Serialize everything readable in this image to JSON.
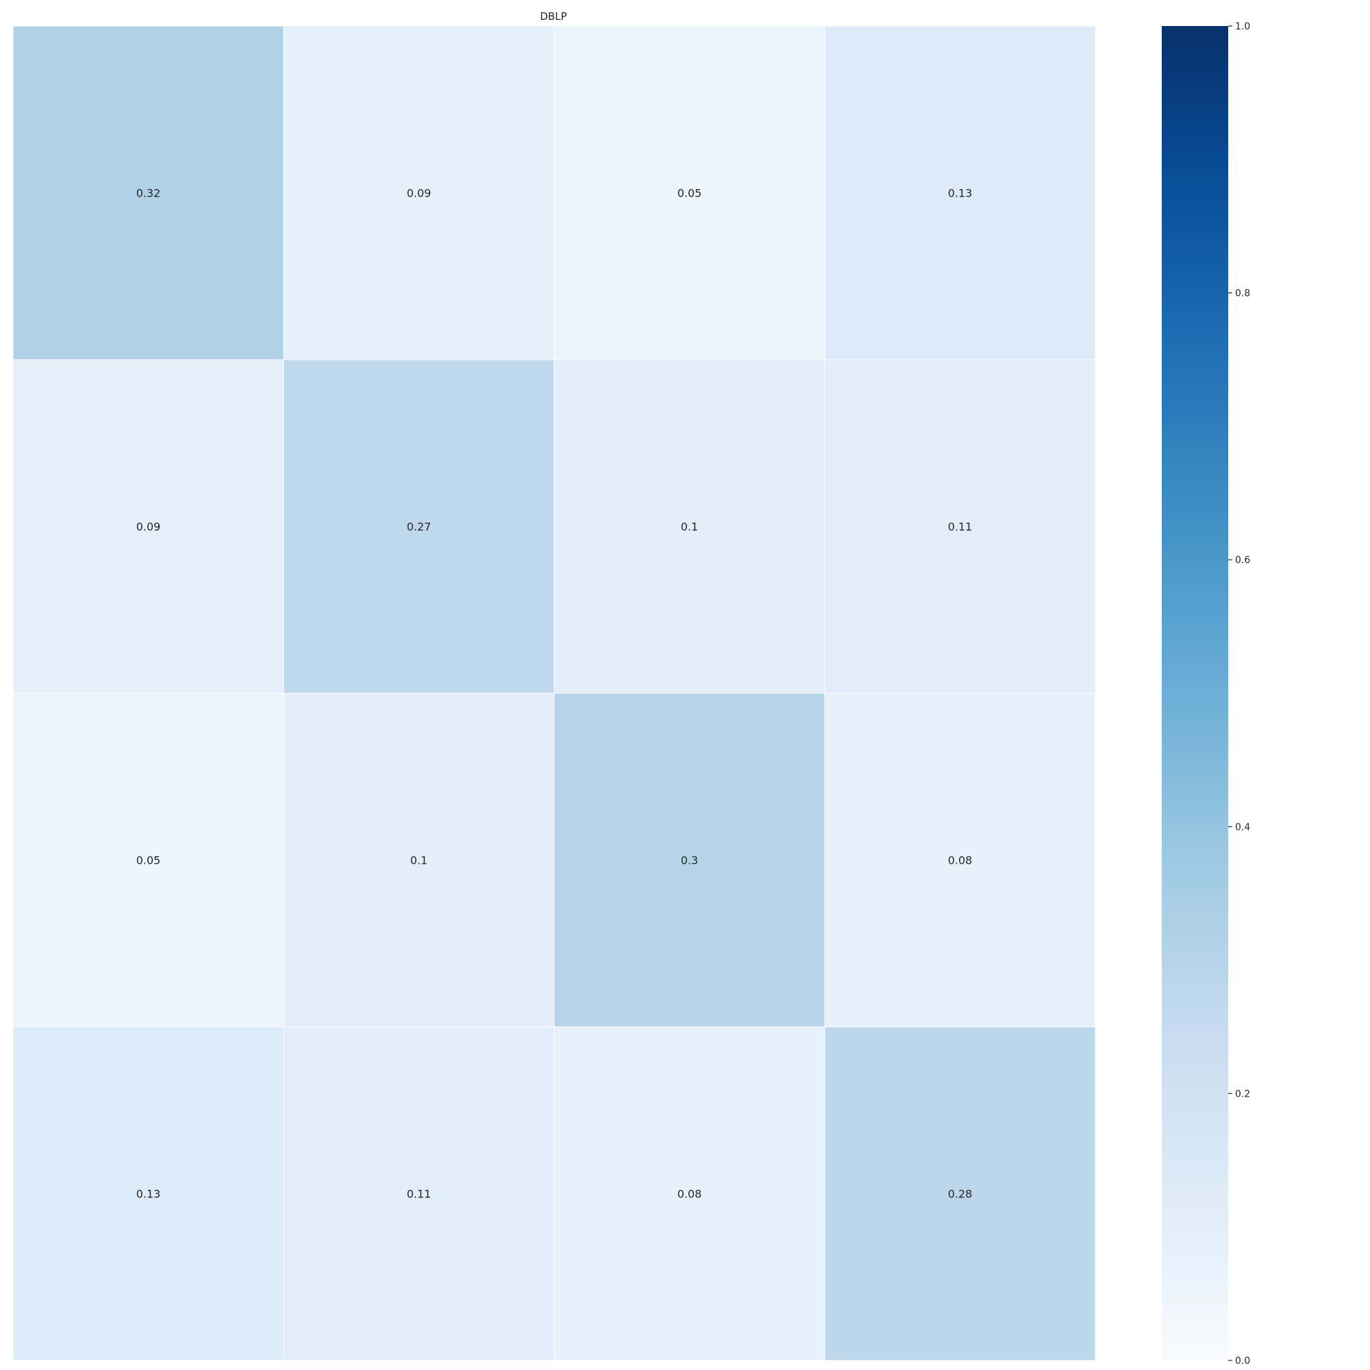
{
  "chart_data": {
    "type": "heatmap",
    "title": "DBLP",
    "matrix": [
      [
        0.32,
        0.09,
        0.05,
        0.13
      ],
      [
        0.09,
        0.27,
        0.1,
        0.11
      ],
      [
        0.05,
        0.1,
        0.3,
        0.08
      ],
      [
        0.13,
        0.11,
        0.08,
        0.28
      ]
    ],
    "annotation_labels": [
      [
        "0.32",
        "0.09",
        "0.05",
        "0.13"
      ],
      [
        "0.09",
        "0.27",
        "0.1",
        "0.11"
      ],
      [
        "0.05",
        "0.1",
        "0.3",
        "0.08"
      ],
      [
        "0.13",
        "0.11",
        "0.08",
        "0.28"
      ]
    ],
    "x_tick_labels": [],
    "y_tick_labels": [],
    "xlabel": "",
    "ylabel": "",
    "colorbar": {
      "colormap": "Blues",
      "range": [
        0.0,
        1.0
      ],
      "ticks": [
        0.0,
        0.2,
        0.4,
        0.6,
        0.8,
        1.0
      ],
      "tick_labels": [
        "0.0",
        "0.2",
        "0.4",
        "0.6",
        "0.8",
        "1.0"
      ]
    },
    "cell_border_color": "#ffffff",
    "text_color": "#262626"
  }
}
